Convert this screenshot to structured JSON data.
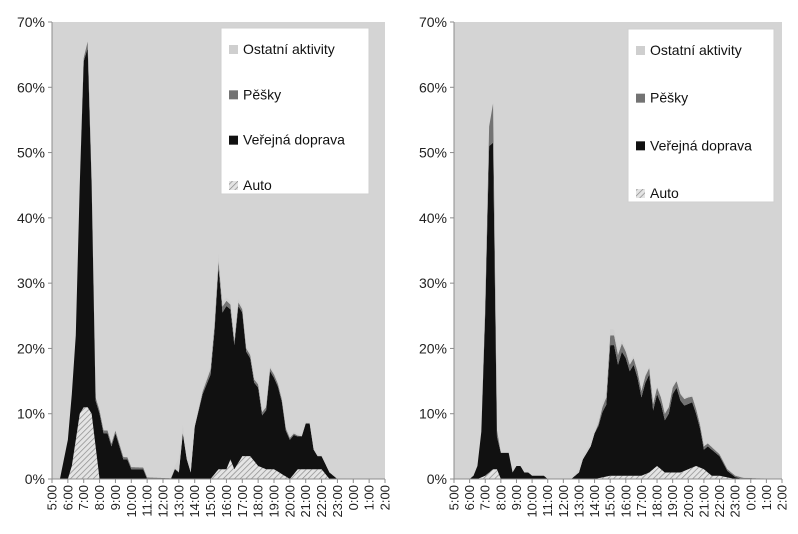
{
  "colors": {
    "plot_background": "#d4d4d4",
    "ostatni": "#cfcfcf",
    "pesky": "#737373",
    "verejna": "#111111",
    "auto_stroke": "#8a8a8a",
    "auto_fill": "#e4e4e4"
  },
  "chart_data": [
    {
      "type": "area",
      "stacked": true,
      "title": "",
      "xlabel": "",
      "ylabel": "",
      "ylim": [
        0,
        70
      ],
      "y_unit": "%",
      "y_ticks": [
        "0%",
        "10%",
        "20%",
        "30%",
        "40%",
        "50%",
        "60%",
        "70%"
      ],
      "x_tick_labels": [
        "5:00",
        "6:00",
        "7:00",
        "8:00",
        "9:00",
        "10:00",
        "11:00",
        "12:00",
        "13:00",
        "14:00",
        "15:00",
        "16:00",
        "17:00",
        "18:00",
        "19:00",
        "20:00",
        "21:00",
        "22:00",
        "23:00",
        "0:00",
        "1:00",
        "2:00"
      ],
      "x_range_hours": [
        5,
        26
      ],
      "grid": false,
      "legend_position": "top-right",
      "legend": [
        "Ostatní aktivity",
        "Pěšky",
        "Veřejná doprava",
        "Auto"
      ],
      "series": [
        {
          "name": "Auto",
          "pattern": "hatched",
          "x": [
            5,
            5.5,
            6,
            6.25,
            6.5,
            6.75,
            7,
            7.25,
            7.5,
            7.75,
            8,
            8.5,
            12.5,
            13,
            14,
            15,
            15.5,
            16,
            16.25,
            16.5,
            17,
            17.5,
            18,
            18.5,
            19,
            20,
            20.5,
            21,
            22,
            22.5,
            23,
            23.5,
            24
          ],
          "values": [
            0,
            0,
            0,
            2,
            6,
            10,
            11,
            11,
            10,
            5,
            0,
            0,
            0,
            0,
            0,
            0,
            1.5,
            1.5,
            3,
            1.5,
            3.5,
            3.5,
            2,
            1.5,
            1.5,
            0,
            1.5,
            1.5,
            1.5,
            0,
            0,
            0,
            0
          ]
        },
        {
          "name": "Veřejná doprava",
          "x": [
            5,
            5.5,
            6,
            6.25,
            6.5,
            6.75,
            7,
            7.25,
            7.5,
            7.75,
            8,
            8.25,
            8.5,
            8.75,
            9,
            9.25,
            9.5,
            9.75,
            10,
            10.25,
            10.5,
            10.75,
            11,
            11.5,
            12,
            12.5,
            12.75,
            13,
            13.25,
            13.5,
            13.75,
            14,
            14.5,
            15,
            15.25,
            15.5,
            15.75,
            16,
            16.25,
            16.5,
            16.75,
            17,
            17.25,
            17.5,
            17.75,
            18,
            18.25,
            18.5,
            18.75,
            19,
            19.25,
            19.5,
            19.75,
            20,
            20.25,
            20.5,
            20.75,
            21,
            21.25,
            21.5,
            21.75,
            22,
            22.25,
            22.5,
            23,
            23.5,
            24,
            24.5,
            25,
            26
          ],
          "values": [
            0,
            0,
            6,
            11,
            16,
            35,
            53,
            55,
            35,
            7,
            10,
            7,
            7,
            5,
            7,
            5,
            3,
            3,
            1.5,
            1.5,
            1.5,
            1.5,
            0,
            0,
            0,
            0,
            1.5,
            1,
            7,
            3,
            1,
            8,
            13,
            16,
            22,
            31,
            24,
            25,
            23,
            19,
            24,
            22,
            16,
            15,
            12,
            12,
            8,
            9,
            15,
            14,
            13,
            11,
            7,
            6,
            6,
            5,
            5,
            7,
            7,
            3,
            2,
            2,
            1.5,
            1,
            0,
            0,
            0,
            0,
            0,
            0
          ]
        },
        {
          "name": "Pěšky",
          "x": [
            5,
            6.75,
            7,
            7.25,
            7.5,
            14,
            15,
            15.5,
            16,
            17,
            18,
            19,
            20,
            21,
            26
          ],
          "values": [
            0,
            0,
            0.5,
            1,
            0.5,
            0,
            0.8,
            1,
            0.8,
            0.5,
            0.5,
            0.5,
            0.3,
            0,
            0
          ]
        },
        {
          "name": "Ostatní aktivity",
          "x": [
            5,
            12.5,
            12.75,
            13,
            13.5,
            14,
            14.5,
            15,
            15.5,
            16,
            26
          ],
          "values": [
            0,
            0,
            0.5,
            2,
            0.5,
            0.5,
            0.5,
            0.5,
            1,
            0.5,
            0
          ]
        }
      ]
    },
    {
      "type": "area",
      "stacked": true,
      "title": "",
      "xlabel": "",
      "ylabel": "",
      "ylim": [
        0,
        70
      ],
      "y_unit": "%",
      "y_ticks": [
        "0%",
        "10%",
        "20%",
        "30%",
        "40%",
        "50%",
        "60%",
        "70%"
      ],
      "x_tick_labels": [
        "5:00",
        "6:00",
        "7:00",
        "8:00",
        "9:00",
        "10:00",
        "11:00",
        "12:00",
        "13:00",
        "14:00",
        "15:00",
        "16:00",
        "17:00",
        "18:00",
        "19:00",
        "20:00",
        "21:00",
        "22:00",
        "23:00",
        "0:00",
        "1:00",
        "2:00"
      ],
      "x_range_hours": [
        5,
        26
      ],
      "grid": false,
      "legend_position": "top-right",
      "legend": [
        "Ostatní aktivity",
        "Pěšky",
        "Veřejná doprava",
        "Auto"
      ],
      "series": [
        {
          "name": "Auto",
          "pattern": "hatched",
          "x": [
            5,
            6.5,
            7,
            7.25,
            7.5,
            7.75,
            8,
            14,
            15,
            16,
            17,
            17.5,
            18,
            18.5,
            19,
            19.5,
            20,
            20.5,
            21,
            21.5,
            22,
            23,
            26
          ],
          "values": [
            0,
            0,
            0.5,
            1,
            1.5,
            1.5,
            0,
            0,
            0.5,
            0.5,
            0.5,
            1,
            2,
            1,
            1,
            1,
            1.5,
            2,
            1.5,
            0.5,
            0.5,
            0,
            0
          ]
        },
        {
          "name": "Veřejná doprava",
          "x": [
            5,
            5.5,
            6,
            6.25,
            6.5,
            6.75,
            7,
            7.25,
            7.5,
            7.75,
            8,
            8.25,
            8.5,
            8.75,
            9,
            9.25,
            9.5,
            9.75,
            10,
            10.25,
            10.5,
            10.75,
            11,
            11.5,
            12,
            12.5,
            12.75,
            13,
            13.25,
            13.5,
            13.75,
            14,
            14.25,
            14.5,
            14.75,
            15,
            15.25,
            15.5,
            15.75,
            16,
            16.25,
            16.5,
            16.75,
            17,
            17.25,
            17.5,
            17.75,
            18,
            18.25,
            18.5,
            18.75,
            19,
            19.25,
            19.5,
            19.75,
            20,
            20.25,
            20.5,
            20.75,
            21,
            21.25,
            21.5,
            21.75,
            22,
            22.25,
            22.5,
            23,
            23.5,
            24,
            24.5,
            25,
            26
          ],
          "values": [
            0,
            0,
            0,
            0.5,
            2,
            7,
            25,
            50,
            50,
            5,
            4,
            4,
            4,
            1,
            2,
            2,
            1,
            1,
            0.5,
            0.5,
            0.5,
            0.5,
            0,
            0,
            0,
            0,
            0.5,
            1,
            3,
            4,
            5,
            7,
            8,
            10,
            11,
            20,
            20,
            17,
            19,
            18,
            16,
            17,
            15,
            12,
            14,
            15,
            9,
            11,
            10,
            8,
            9,
            12,
            13,
            11,
            10,
            10,
            10,
            8,
            6,
            3,
            4,
            4,
            3.5,
            3,
            2,
            1,
            0.3,
            0,
            0,
            0,
            0,
            0
          ]
        },
        {
          "name": "Pěšky",
          "x": [
            5,
            6.75,
            7,
            7.25,
            7.5,
            7.75,
            8,
            14,
            15,
            15.5,
            16,
            17,
            18,
            19,
            20,
            21,
            22,
            26
          ],
          "values": [
            0,
            0,
            1,
            3,
            6,
            1,
            0,
            0,
            1.5,
            1.5,
            1,
            1,
            1,
            1,
            1,
            0.5,
            0.3,
            0
          ]
        },
        {
          "name": "Ostatní aktivity",
          "x": [
            5,
            12.5,
            13,
            14,
            15,
            16,
            17,
            26
          ],
          "values": [
            0,
            0,
            0.5,
            0.5,
            1,
            0.5,
            0.3,
            0
          ]
        }
      ]
    }
  ]
}
